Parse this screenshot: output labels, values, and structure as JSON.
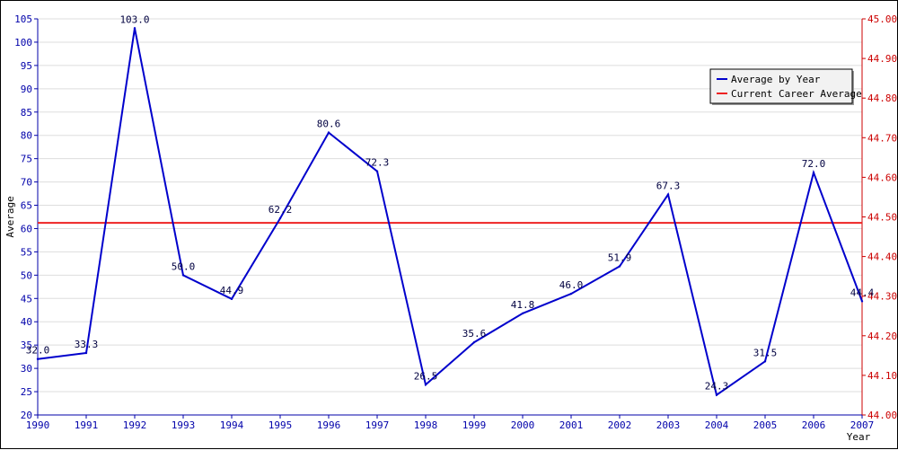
{
  "chart_data": {
    "type": "line",
    "title": "",
    "xlabel": "Year",
    "ylabel": "Average",
    "categories": [
      "1990",
      "1991",
      "1992",
      "1993",
      "1994",
      "1995",
      "1996",
      "1997",
      "1998",
      "1999",
      "2000",
      "2001",
      "2002",
      "2003",
      "2004",
      "2005",
      "2006",
      "2007"
    ],
    "series": [
      {
        "name": "Average by Year",
        "axis": "left",
        "color": "#0000cc",
        "values": [
          32.0,
          33.3,
          103.0,
          50.0,
          44.9,
          62.2,
          80.6,
          72.3,
          26.5,
          35.6,
          41.8,
          46.0,
          51.9,
          67.3,
          24.3,
          31.5,
          72.0,
          44.4
        ],
        "labels": [
          "32.0",
          "33.3",
          "103.0",
          "50.0",
          "44.9",
          "62.2",
          "80.6",
          "72.3",
          "26.5",
          "35.6",
          "41.8",
          "46.0",
          "51.9",
          "67.3",
          "24.3",
          "31.5",
          "72.0",
          "44.4"
        ]
      },
      {
        "name": "Current Career Average",
        "axis": "right",
        "color": "#ee2222",
        "value": 44.485
      }
    ],
    "ylim": [
      20,
      105
    ],
    "yticks": [
      "20",
      "25",
      "30",
      "35",
      "40",
      "45",
      "50",
      "55",
      "60",
      "65",
      "70",
      "75",
      "80",
      "85",
      "90",
      "95",
      "100",
      "105"
    ],
    "y2lim": [
      44.0,
      45.0
    ],
    "y2ticks": [
      "44.00",
      "44.10",
      "44.20",
      "44.30",
      "44.40",
      "44.50",
      "44.60",
      "44.70",
      "44.80",
      "44.90",
      "45.00"
    ],
    "left_axis_color": "#0000aa",
    "right_axis_color": "#cc0000",
    "grid": true,
    "legend_position": "top-right"
  }
}
